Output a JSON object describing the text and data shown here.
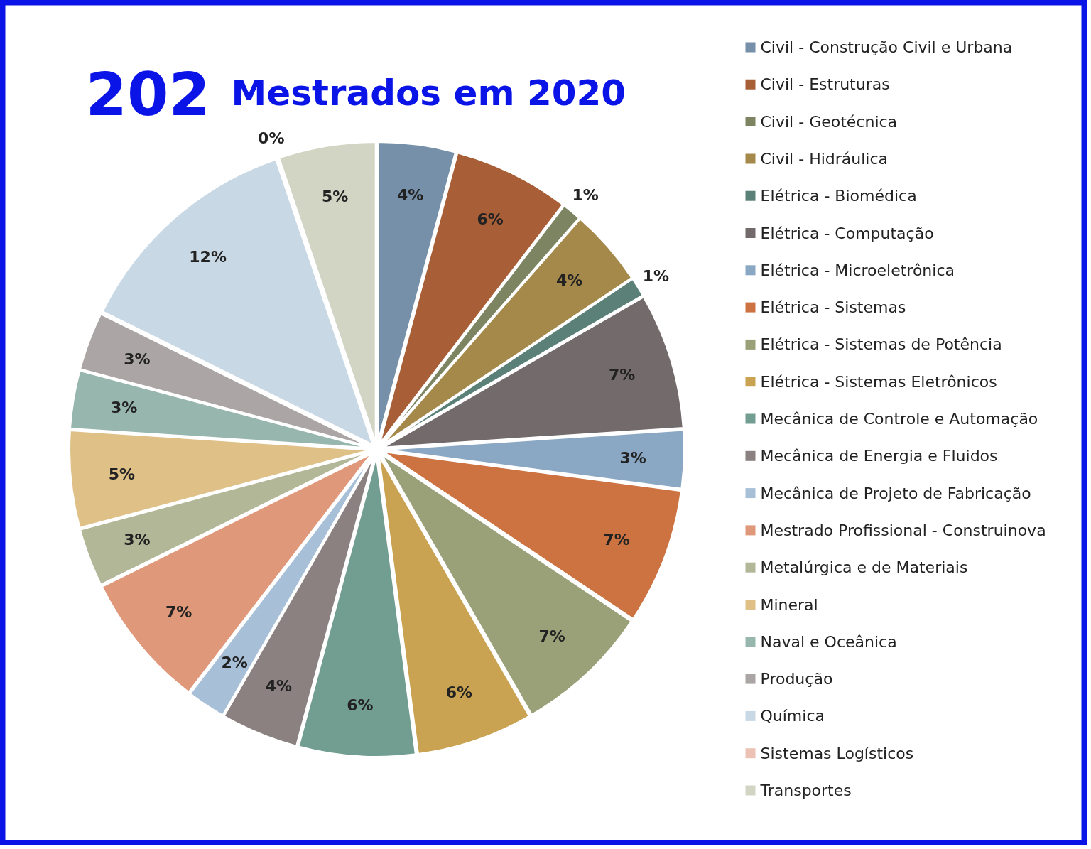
{
  "chart_data": {
    "type": "pie",
    "title": "202",
    "subtitle": "Mestrados em 2020",
    "categories": [
      "Civil - Construção Civil e Urbana",
      "Civil - Estruturas",
      "Civil - Geotécnica",
      "Civil - Hidráulica",
      "Elétrica - Biomédica",
      "Elétrica - Computação",
      "Elétrica - Microeletrônica",
      "Elétrica - Sistemas",
      "Elétrica - Sistemas de Potência",
      "Elétrica - Sistemas Eletrônicos",
      "Mecânica de Controle e Automação",
      "Mecânica de Energia e Fluidos",
      "Mecânica de Projeto de Fabricação",
      "Mestrado Profissional - Construinova",
      "Metalúrgica e de Materiais",
      "Mineral",
      "Naval e Oceânica",
      "Produção",
      "Química",
      "Sistemas Logísticos",
      "Transportes"
    ],
    "values": [
      4,
      6,
      1,
      4,
      1,
      7,
      3,
      7,
      7,
      6,
      6,
      4,
      2,
      7,
      3,
      5,
      3,
      3,
      12,
      0,
      5
    ],
    "value_labels": [
      "4%",
      "6%",
      "1%",
      "4%",
      "1%",
      "7%",
      "3%",
      "7%",
      "7%",
      "6%",
      "6%",
      "4%",
      "2%",
      "7%",
      "3%",
      "5%",
      "3%",
      "3%",
      "12%",
      "0%",
      "5%"
    ],
    "colors": [
      "#7590a8",
      "#a85f37",
      "#7c8462",
      "#a5894a",
      "#5a8078",
      "#736a6b",
      "#8aa8c3",
      "#cc7341",
      "#9aa077",
      "#c9a352",
      "#729d91",
      "#8a8180",
      "#a8bfd8",
      "#e0987a",
      "#b1b797",
      "#dfc188",
      "#97b6ad",
      "#aba5a5",
      "#c9d8e5",
      "#ecc2b5",
      "#d3d5c4"
    ],
    "legend": "right"
  }
}
